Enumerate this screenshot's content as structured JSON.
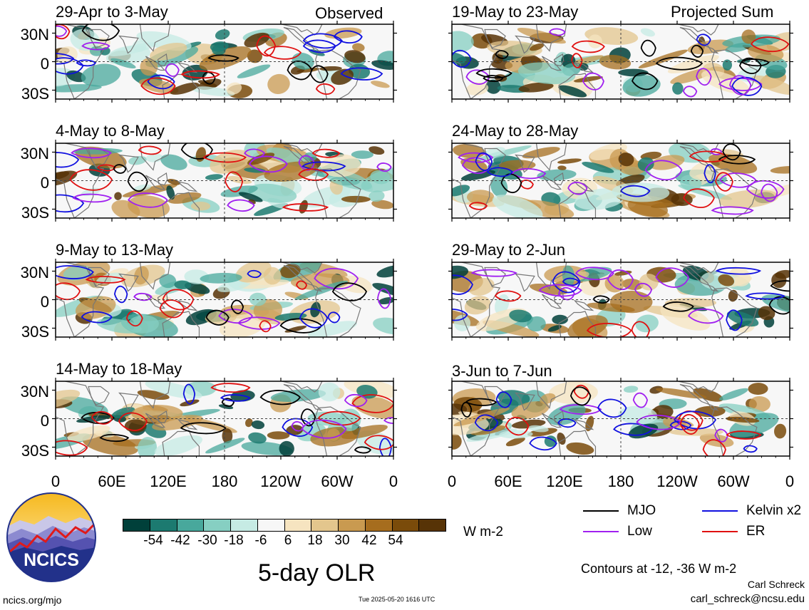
{
  "columns": {
    "left_label": "Observed",
    "right_label": "Projected Sum"
  },
  "panels": {
    "left": [
      "29-Apr to 3-May",
      "4-May to 8-May",
      "9-May to 13-May",
      "14-May to 18-May"
    ],
    "right": [
      "19-May to 23-May",
      "24-May to 28-May",
      "29-May to 2-Jun",
      "3-Jun to 7-Jun"
    ]
  },
  "axes": {
    "lat_ticks": [
      "30N",
      "0",
      "30S"
    ],
    "lon_ticks": [
      "0",
      "60E",
      "120E",
      "180",
      "120W",
      "60W",
      "0"
    ]
  },
  "colorbar": {
    "colors": [
      "#00403a",
      "#1c7a70",
      "#48a89c",
      "#86cfc2",
      "#c6ebe4",
      "#f7f7f7",
      "#f6e4c0",
      "#e3c68d",
      "#c99a50",
      "#a66d1e",
      "#7a4b0a",
      "#573306"
    ],
    "ticks": [
      "-54",
      "-42",
      "-30",
      "-18",
      "-6",
      "6",
      "18",
      "30",
      "42",
      "54"
    ],
    "units": "W m-2"
  },
  "legend": {
    "items": [
      {
        "label": "MJO",
        "color": "#000000"
      },
      {
        "label": "Kelvin x2",
        "color": "#1010e0"
      },
      {
        "label": "Low",
        "color": "#a020f0"
      },
      {
        "label": "ER",
        "color": "#e01010"
      }
    ],
    "contour_note": "Contours at -12, -36 W m-2"
  },
  "title": "5-day OLR",
  "logo_text": "NCICS",
  "site": "ncics.org/mjo",
  "timestamp": "Tue 2025-05-20 1616 UTC",
  "author": "Carl Schreck",
  "email": "carl_schreck@ncsu.edu",
  "chart_data": {
    "type": "heatmap",
    "variable": "5-day OLR anomaly",
    "units": "W m-2",
    "lat_range": [
      "30S",
      "30N"
    ],
    "lon_range": [
      "0",
      "0"
    ],
    "color_levels": [
      -54,
      -42,
      -30,
      -18,
      -6,
      6,
      18,
      30,
      42,
      54
    ],
    "contour_levels": [
      -12,
      -36
    ],
    "contour_series": [
      "MJO",
      "Kelvin x2",
      "Low",
      "ER"
    ]
  }
}
